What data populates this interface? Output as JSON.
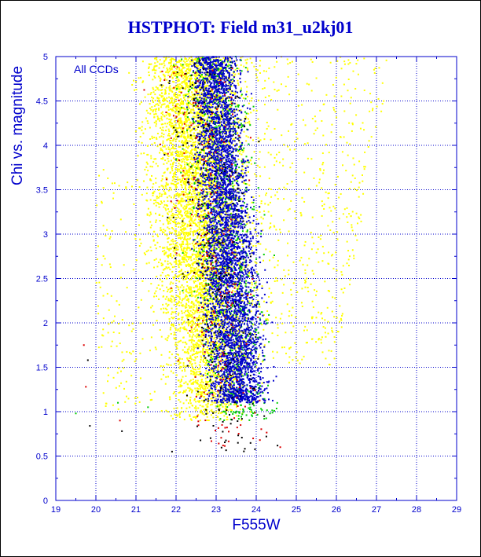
{
  "chart_data": {
    "type": "scatter",
    "title": "HSTPHOT: Field m31_u2kj01",
    "xlabel": "F555W",
    "ylabel": "Chi vs. magnitude",
    "annotation": "All CCDs",
    "xlim": [
      19,
      29
    ],
    "ylim": [
      0,
      5
    ],
    "x_ticks": [
      "19",
      "20",
      "21",
      "22",
      "23",
      "24",
      "25",
      "26",
      "27",
      "28",
      "29"
    ],
    "y_ticks": [
      "0",
      "0.5",
      "1",
      "1.5",
      "2",
      "2.5",
      "3",
      "3.5",
      "4",
      "4.5",
      "5"
    ],
    "grid": true,
    "colors": {
      "axis": "#0000cc",
      "grid": "#0000cc",
      "point_yellow": "#ffff00",
      "point_blue": "#0000cc",
      "point_green": "#00cc00",
      "point_red": "#dd0000",
      "point_black": "#000000"
    },
    "series": [
      {
        "color": "yellow",
        "description_points": [
          [
            22.0,
            4.5
          ],
          [
            22.3,
            3.5
          ],
          [
            22.6,
            2.5
          ],
          [
            22.8,
            1.8
          ],
          [
            23.2,
            1.4
          ],
          [
            23.8,
            1.6
          ],
          [
            24.0,
            2.0
          ],
          [
            25.5,
            4.5
          ],
          [
            21.5,
            2.0
          ],
          [
            20.5,
            1.8
          ]
        ]
      },
      {
        "color": "blue",
        "description_points": [
          [
            23.0,
            4.5
          ],
          [
            23.2,
            3.5
          ],
          [
            23.3,
            2.5
          ],
          [
            23.5,
            2.0
          ],
          [
            23.6,
            1.6
          ],
          [
            23.4,
            1.3
          ]
        ]
      },
      {
        "color": "green",
        "description_points": [
          [
            23.5,
            4.0
          ],
          [
            23.8,
            2.5
          ],
          [
            24.0,
            1.8
          ],
          [
            24.2,
            1.3
          ],
          [
            22.5,
            1.2
          ]
        ]
      },
      {
        "color": "red",
        "description_points": [
          [
            22.2,
            2.5
          ],
          [
            22.4,
            1.5
          ],
          [
            22.8,
            1.0
          ],
          [
            19.7,
            1.75
          ],
          [
            20.6,
            0.9
          ]
        ]
      },
      {
        "color": "black",
        "description_points": [
          [
            22.5,
            3.0
          ],
          [
            23.0,
            1.5
          ],
          [
            24.5,
            1.1
          ],
          [
            19.8,
            1.58
          ],
          [
            20.7,
            0.78
          ]
        ]
      }
    ]
  }
}
